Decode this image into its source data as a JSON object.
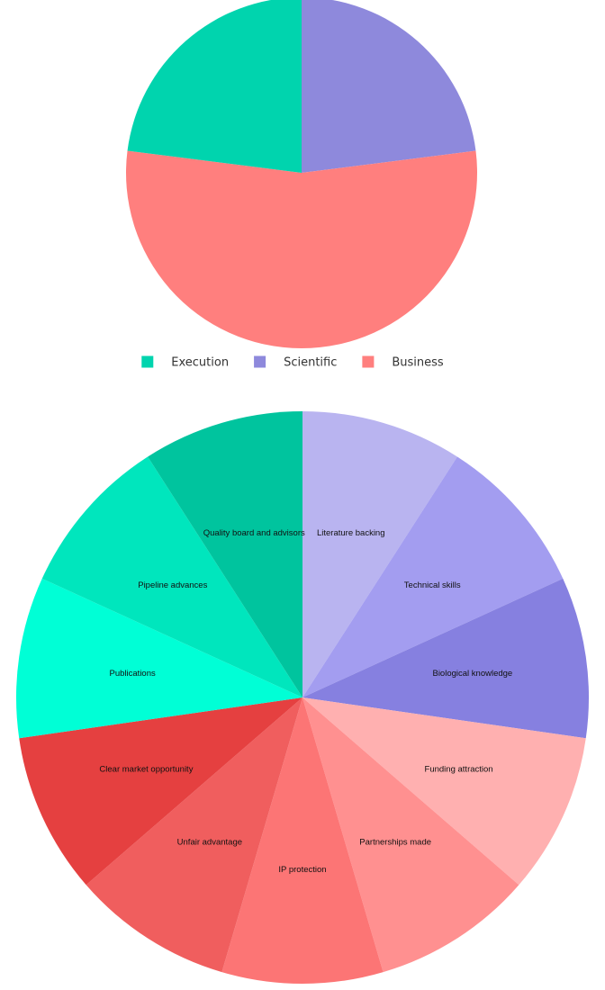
{
  "chart_data": [
    {
      "type": "pie",
      "title": "",
      "categories": [
        "Scientific",
        "Business",
        "Execution"
      ],
      "values": [
        23,
        54,
        23
      ],
      "colors": [
        "#8e89dc",
        "#ff7f7e",
        "#00d4ae"
      ],
      "legend": {
        "placement": "bottom",
        "entries": [
          {
            "label": "Execution",
            "color": "#00d4ae"
          },
          {
            "label": "Scientific",
            "color": "#8e89dc"
          },
          {
            "label": "Business",
            "color": "#ff7f7e"
          }
        ]
      }
    },
    {
      "type": "pie",
      "title": "",
      "categories": [
        "Literature backing",
        "Technical skills",
        "Biological knowledge",
        "Funding attraction",
        "Partnerships made",
        "IP protection",
        "Unfair advantage",
        "Clear market opportunity",
        "Publications",
        "Pipeline advances",
        "Quality board and advisors"
      ],
      "values": [
        1,
        1,
        1,
        1,
        1,
        1,
        1,
        1,
        1,
        1,
        1
      ],
      "colors": [
        "#b9b4f0",
        "#a39df0",
        "#8680e0",
        "#ffb0b0",
        "#ff9090",
        "#fc7575",
        "#f05e5e",
        "#e54040",
        "#00ffd6",
        "#00e6bd",
        "#00c49e"
      ]
    }
  ]
}
